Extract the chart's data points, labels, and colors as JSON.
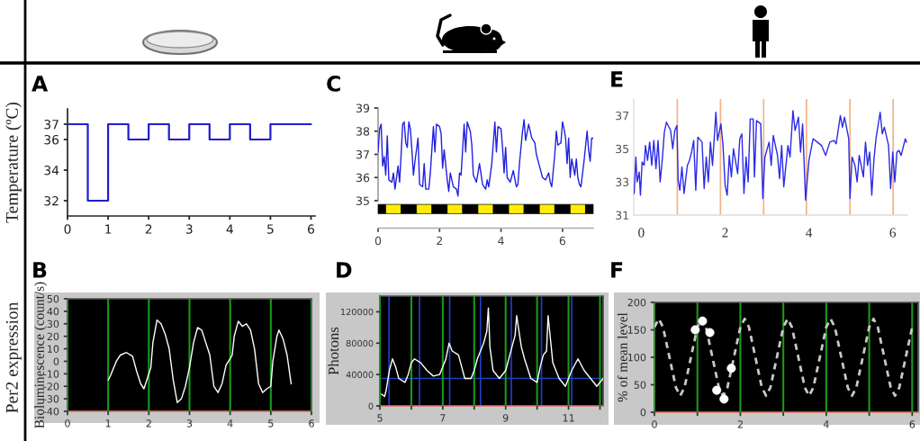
{
  "chart_data": [
    {
      "type": "step",
      "title": "A",
      "ylabel": "Temperature (ºC)",
      "x": [
        0,
        0.5,
        1,
        1.5,
        2,
        2.5,
        3,
        3.5,
        4,
        4.5,
        5,
        6
      ],
      "series": [
        {
          "color": "#1f1fcc",
          "values": [
            37,
            32,
            37,
            36,
            37,
            36,
            37,
            36,
            37,
            36,
            37,
            37
          ]
        }
      ],
      "xlim": [
        0,
        6.1
      ],
      "ylim": [
        31,
        38
      ],
      "xticks": [
        0,
        1,
        2,
        3,
        4,
        5,
        6
      ],
      "yticks": [
        32,
        34,
        36,
        37
      ],
      "grid": false
    },
    {
      "type": "line",
      "title": "B",
      "ylabel": "Bioluminescence (count/s)",
      "annotations": [
        "Per2 expression"
      ],
      "x": [
        1.0,
        1.05,
        1.2,
        1.3,
        1.45,
        1.6,
        1.7,
        1.8,
        1.88,
        1.95,
        2.0,
        2.05,
        2.1,
        2.2,
        2.3,
        2.4,
        2.5,
        2.6,
        2.7,
        2.8,
        2.9,
        3.0,
        3.1,
        3.2,
        3.3,
        3.4,
        3.5,
        3.6,
        3.7,
        3.8,
        3.9,
        4.0,
        4.05,
        4.1,
        4.2,
        4.3,
        4.4,
        4.5,
        4.6,
        4.7,
        4.8,
        4.9,
        5.0,
        5.05,
        5.15,
        5.2,
        5.3,
        5.4,
        5.5
      ],
      "series": [
        {
          "color": "#ffffff",
          "values": [
            -15,
            -12,
            0,
            5,
            7,
            4,
            -8,
            -18,
            -22,
            -15,
            -10,
            -5,
            15,
            33,
            30,
            22,
            10,
            -15,
            -33,
            -30,
            -20,
            -5,
            15,
            27,
            25,
            15,
            5,
            -20,
            -25,
            -18,
            -3,
            2,
            5,
            20,
            32,
            28,
            30,
            25,
            10,
            -18,
            -25,
            -22,
            -20,
            0,
            20,
            25,
            18,
            5,
            -18
          ]
        }
      ],
      "xlim": [
        0,
        6
      ],
      "ylim": [
        -40,
        50
      ],
      "xticks": [
        0,
        1,
        2,
        3,
        4,
        5,
        6
      ],
      "yticks": [
        -40,
        -30,
        -20,
        -10,
        0,
        10,
        20,
        30,
        40,
        50
      ],
      "grid": "x"
    },
    {
      "type": "line",
      "title": "C",
      "x": [
        0,
        0.05,
        0.1,
        0.15,
        0.2,
        0.25,
        0.3,
        0.35,
        0.45,
        0.5,
        0.55,
        0.65,
        0.7,
        0.75,
        0.8,
        0.85,
        0.9,
        0.95,
        1.0,
        1.05,
        1.1,
        1.15,
        1.2,
        1.3,
        1.35,
        1.45,
        1.5,
        1.55,
        1.65,
        1.7,
        1.8,
        1.85,
        1.9,
        2.0,
        2.05,
        2.1,
        2.15,
        2.25,
        2.3,
        2.35,
        2.45,
        2.55,
        2.6,
        2.65,
        2.7,
        2.8,
        2.85,
        2.9,
        3.0,
        3.05,
        3.1,
        3.2,
        3.3,
        3.4,
        3.5,
        3.55,
        3.6,
        3.7,
        3.8,
        3.85,
        3.9,
        4.0,
        4.05,
        4.1,
        4.15,
        4.2,
        4.3,
        4.4,
        4.5,
        4.55,
        4.6,
        4.7,
        4.75,
        4.8,
        4.9,
        5.0,
        5.1,
        5.15,
        5.25,
        5.35,
        5.45,
        5.55,
        5.6,
        5.65,
        5.75,
        5.8,
        5.85,
        5.95,
        6.0,
        6.05,
        6.1,
        6.15,
        6.2,
        6.25,
        6.3,
        6.4,
        6.45,
        6.5,
        6.55,
        6.6,
        6.7,
        6.8,
        6.85,
        6.9,
        6.95,
        7.0
      ],
      "series": [
        {
          "color": "#2020e0",
          "values": [
            37.1,
            38.1,
            38.3,
            36.5,
            36.9,
            36.1,
            37.8,
            35.9,
            35.8,
            36.2,
            35.5,
            36.5,
            35.8,
            37.0,
            38.3,
            38.4,
            37.5,
            37.3,
            38.4,
            38.1,
            37.2,
            36.1,
            36.7,
            37.7,
            35.7,
            35.6,
            36.6,
            35.5,
            35.5,
            36.2,
            38.2,
            37.1,
            38.3,
            38.2,
            37.9,
            36.4,
            37.2,
            35.9,
            35.4,
            36.2,
            35.6,
            35.5,
            35.2,
            36.2,
            36.1,
            38.3,
            37.1,
            38.4,
            38.0,
            37.4,
            36.1,
            35.8,
            36.6,
            35.7,
            35.5,
            35.9,
            35.6,
            36.6,
            38.4,
            37.1,
            38.2,
            38.1,
            37.3,
            36.2,
            37.3,
            36.0,
            35.8,
            36.3,
            35.6,
            35.7,
            36.6,
            38.0,
            38.5,
            37.6,
            38.3,
            37.7,
            37.5,
            37.0,
            36.5,
            36.0,
            35.9,
            36.2,
            35.8,
            35.6,
            37.0,
            38.0,
            37.4,
            37.5,
            38.4,
            38.1,
            37.7,
            36.6,
            37.7,
            36.0,
            36.8,
            36.1,
            36.8,
            36.0,
            35.7,
            35.6,
            36.7,
            38.0,
            37.2,
            36.7,
            37.7,
            37.7
          ]
        }
      ],
      "xlim": [
        0,
        7
      ],
      "ylim": [
        35,
        39
      ],
      "xticks": [
        0,
        2,
        4,
        6
      ],
      "yticks": [
        35,
        36,
        37,
        38,
        39
      ],
      "grid": false
    },
    {
      "type": "line",
      "title": "D",
      "ylabel": "Photons",
      "x": [
        5.05,
        5.15,
        5.2,
        5.3,
        5.4,
        5.5,
        5.6,
        5.8,
        5.9,
        6.0,
        6.1,
        6.3,
        6.5,
        6.7,
        6.9,
        7.0,
        7.1,
        7.2,
        7.3,
        7.5,
        7.6,
        7.7,
        7.9,
        8.0,
        8.1,
        8.3,
        8.4,
        8.45,
        8.5,
        8.6,
        8.8,
        9.0,
        9.2,
        9.3,
        9.35,
        9.5,
        9.6,
        9.8,
        10.0,
        10.1,
        10.2,
        10.3,
        10.35,
        10.5,
        10.7,
        10.9,
        11.1,
        11.3,
        11.5,
        11.7,
        11.9,
        12.1
      ],
      "series": [
        {
          "color": "#ffffff",
          "values": [
            15000,
            12000,
            20000,
            45000,
            60000,
            50000,
            35000,
            30000,
            40000,
            55000,
            60000,
            55000,
            45000,
            38000,
            40000,
            50000,
            60000,
            80000,
            70000,
            65000,
            50000,
            35000,
            35000,
            45000,
            60000,
            80000,
            95000,
            125000,
            75000,
            45000,
            35000,
            45000,
            75000,
            90000,
            115000,
            75000,
            60000,
            35000,
            30000,
            50000,
            65000,
            70000,
            115000,
            55000,
            35000,
            25000,
            45000,
            60000,
            45000,
            35000,
            25000,
            35000
          ]
        }
      ],
      "ref_lines": [
        {
          "axis": "y",
          "value": 35000,
          "color": "#2040c0"
        },
        {
          "axis": "x",
          "value": 5.29,
          "color": "#2040c0"
        },
        {
          "axis": "x",
          "value": 6.26,
          "color": "#2040c0"
        },
        {
          "axis": "x",
          "value": 7.22,
          "color": "#2040c0"
        },
        {
          "axis": "x",
          "value": 8.2,
          "color": "#2040c0"
        },
        {
          "axis": "x",
          "value": 9.18,
          "color": "#2040c0"
        },
        {
          "axis": "x",
          "value": 10.14,
          "color": "#2040c0"
        },
        {
          "axis": "x",
          "value": 11.1,
          "color": "#2040c0"
        }
      ],
      "xlim": [
        5,
        12.1
      ],
      "ylim": [
        0,
        140000
      ],
      "xticks": [
        5,
        {
          "value": 6,
          "label": null
        },
        7,
        {
          "value": 8,
          "label": null
        },
        9,
        {
          "value": 10,
          "label": null
        },
        11,
        {
          "value": 12,
          "label": null
        }
      ],
      "yticks": [
        0,
        40000,
        80000,
        120000
      ],
      "grid": "x"
    },
    {
      "type": "line",
      "title": "E",
      "x": [
        -0.17,
        -0.13,
        -0.1,
        -0.05,
        -0.02,
        0.02,
        0.07,
        0.1,
        0.15,
        0.2,
        0.25,
        0.3,
        0.35,
        0.4,
        0.45,
        0.5,
        0.55,
        0.6,
        0.7,
        0.75,
        0.8,
        0.85,
        0.88,
        0.92,
        0.97,
        1.02,
        1.1,
        1.15,
        1.2,
        1.25,
        1.3,
        1.35,
        1.45,
        1.5,
        1.55,
        1.6,
        1.65,
        1.7,
        1.78,
        1.82,
        1.9,
        1.95,
        2.0,
        2.05,
        2.1,
        2.15,
        2.2,
        2.3,
        2.35,
        2.4,
        2.45,
        2.5,
        2.55,
        2.6,
        2.67,
        2.7,
        2.75,
        2.85,
        2.9,
        2.95,
        3.05,
        3.1,
        3.15,
        3.25,
        3.3,
        3.35,
        3.4,
        3.5,
        3.55,
        3.62,
        3.67,
        3.75,
        3.8,
        3.85,
        3.92,
        4.0,
        4.1,
        4.2,
        4.3,
        4.4,
        4.5,
        4.6,
        4.65,
        4.75,
        4.8,
        4.85,
        4.95,
        4.98,
        5.03,
        5.1,
        5.15,
        5.2,
        5.3,
        5.35,
        5.4,
        5.45,
        5.5,
        5.55,
        5.6,
        5.7,
        5.75,
        5.8,
        5.9,
        5.95,
        6.0,
        6.05,
        6.1,
        6.15,
        6.2,
        6.3,
        6.33
      ],
      "series": [
        {
          "color": "#2a2ae6",
          "values": [
            32.3,
            34.5,
            33.0,
            33.6,
            32.2,
            34.2,
            34.0,
            35.2,
            34.3,
            35.4,
            34.0,
            35.5,
            33.8,
            35.5,
            33.0,
            34.3,
            36.0,
            36.6,
            36.1,
            35.0,
            36.1,
            36.4,
            33.1,
            32.5,
            33.9,
            32.3,
            34.0,
            34.3,
            34.8,
            35.5,
            32.5,
            35.7,
            35.4,
            32.6,
            34.5,
            33.0,
            35.4,
            34.0,
            37.2,
            35.5,
            36.5,
            35.2,
            32.8,
            32.2,
            34.6,
            33.3,
            35.0,
            33.5,
            35.6,
            35.9,
            32.3,
            34.5,
            33.0,
            36.8,
            36.8,
            33.3,
            36.7,
            36.5,
            32.0,
            34.5,
            35.4,
            34.0,
            35.8,
            34.6,
            33.2,
            35.2,
            32.7,
            35.2,
            34.5,
            37.3,
            36.1,
            36.9,
            34.8,
            36.5,
            31.9,
            34.3,
            35.6,
            35.4,
            35.2,
            34.6,
            35.4,
            35.5,
            35.3,
            37.0,
            36.3,
            36.9,
            35.6,
            32.0,
            34.5,
            34.0,
            33.0,
            34.6,
            33.3,
            35.4,
            34.0,
            34.8,
            32.2,
            34.3,
            35.6,
            37.2,
            35.9,
            36.3,
            35.2,
            32.6,
            34.8,
            33.0,
            34.8,
            34.9,
            34.6,
            35.6,
            35.4
          ]
        }
      ],
      "ref_lines": [
        {
          "axis": "x",
          "value": 0.86,
          "color": "#f4b183"
        },
        {
          "axis": "x",
          "value": 1.89,
          "color": "#f4b183"
        },
        {
          "axis": "x",
          "value": 2.92,
          "color": "#f4b183"
        },
        {
          "axis": "x",
          "value": 3.94,
          "color": "#f4b183"
        },
        {
          "axis": "x",
          "value": 4.98,
          "color": "#f4b183"
        },
        {
          "axis": "x",
          "value": 6.01,
          "color": "#f4b183"
        }
      ],
      "xlim": [
        -0.18,
        6.35
      ],
      "ylim": [
        31,
        38
      ],
      "xticks": [
        0,
        2,
        4,
        6
      ],
      "yticks": [
        31,
        33,
        35,
        37
      ],
      "grid": false
    },
    {
      "type": "line",
      "title": "F",
      "ylabel": "% of mean level",
      "series": [
        {
          "type": "line",
          "line_style": "dashed",
          "color": "#c8c8c8",
          "x": [
            0,
            0.1,
            0.2,
            0.35,
            0.5,
            0.6,
            0.7,
            0.85,
            1.0,
            1.1,
            1.2,
            1.35,
            1.5,
            1.6,
            1.7,
            1.85,
            2.0,
            2.1,
            2.2,
            2.35,
            2.5,
            2.6,
            2.7,
            2.85,
            3.0,
            3.1,
            3.2,
            3.35,
            3.5,
            3.6,
            3.7,
            3.85,
            4.0,
            4.1,
            4.2,
            4.35,
            4.5,
            4.6,
            4.7,
            4.85,
            5.0,
            5.1,
            5.2,
            5.35,
            5.5,
            5.6,
            5.7,
            5.85,
            6.0
          ],
          "values": [
            155,
            170,
            155,
            100,
            45,
            30,
            45,
            100,
            155,
            170,
            155,
            100,
            45,
            30,
            45,
            100,
            155,
            170,
            155,
            100,
            45,
            30,
            45,
            100,
            155,
            170,
            155,
            100,
            45,
            30,
            45,
            100,
            155,
            170,
            155,
            100,
            45,
            30,
            45,
            100,
            155,
            170,
            155,
            100,
            45,
            30,
            45,
            100,
            155
          ]
        },
        {
          "type": "scatter",
          "marker": "circle",
          "color": "#ffffff",
          "x": [
            0.95,
            1.12,
            1.29,
            1.45,
            1.62,
            1.79
          ],
          "values": [
            150,
            166,
            145,
            40,
            24,
            80
          ]
        }
      ],
      "xlim": [
        0,
        6.14
      ],
      "ylim": [
        0,
        200
      ],
      "xticks": [
        0,
        {
          "value": 1,
          "label": null
        },
        2,
        {
          "value": 3,
          "label": null
        },
        4,
        {
          "value": 5,
          "label": null
        },
        6
      ],
      "yticks": [
        0,
        50,
        100,
        150,
        200
      ],
      "grid": "x"
    }
  ]
}
